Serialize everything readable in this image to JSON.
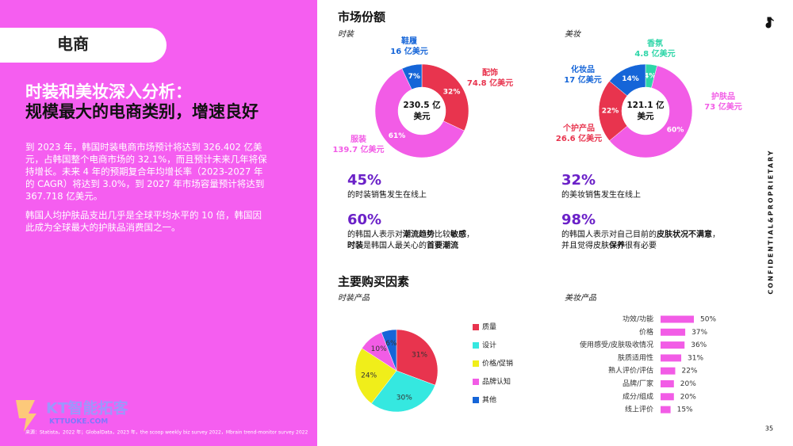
{
  "tag": "电商",
  "heading": [
    "时装和美妆深入分析：",
    "规模最大的电商类别，增速良好"
  ],
  "paragraphs": [
    [
      "到 2023 年，韩国时装电商市场预计将达到 326.402 亿美",
      "元，占韩国整个电商市场的 32.1%，而且预计未来几年将保",
      "持增长。未来 4 年的预期复合年均增长率（2023-2027 年",
      "的 CAGR）将达到 3.0%，到 2027 年市场容量预计将达到",
      "367.718 亿美元。"
    ],
    [
      "韩国人均护肤品支出几乎是全球平均水平的 10 倍，韩国因",
      "此成为全球最大的护肤品消费国之一。"
    ]
  ],
  "source": "来源：Statista，2022 年；GlobalData，2023 年，the scoop weekly biz survey 2022，Mbrain trend-monitor survey 2022",
  "logo": {
    "name": "KT智能拓客",
    "site": "KTTUOKE.COM"
  },
  "market_share_title": "市场份额",
  "purchase_factors_title": "主要购买因素",
  "side_text": "CONFIDENTIAL&PROPRIETARY",
  "page_number": "35",
  "stats": [
    {
      "figure": "45%",
      "lines": [
        [
          {
            "text": "的时装销售发生在线上",
            "bold": false
          }
        ]
      ]
    },
    {
      "figure": "60%",
      "lines": [
        [
          {
            "text": "的韩国人表示对",
            "bold": false
          },
          {
            "text": "潮流趋势",
            "bold": true
          },
          {
            "text": "比较",
            "bold": false
          },
          {
            "text": "敏感",
            "bold": true
          },
          {
            "text": "，",
            "bold": false
          }
        ],
        [
          {
            "text": "时装",
            "bold": true
          },
          {
            "text": "是韩国人最关心的",
            "bold": false
          },
          {
            "text": "首要潮流",
            "bold": true
          }
        ]
      ]
    },
    {
      "figure": "32%",
      "lines": [
        [
          {
            "text": "的美妆销售发生在线上",
            "bold": false
          }
        ]
      ]
    },
    {
      "figure": "98%",
      "lines": [
        [
          {
            "text": "的韩国人表示对自己目前的",
            "bold": false
          },
          {
            "text": "皮肤状况不满意",
            "bold": true
          },
          {
            "text": "，",
            "bold": false
          }
        ],
        [
          {
            "text": "并且觉得皮肤",
            "bold": false
          },
          {
            "text": "保养",
            "bold": true
          },
          {
            "text": "很有必要",
            "bold": false
          }
        ]
      ]
    }
  ],
  "chart_data": [
    {
      "type": "donut",
      "subtitle": "时装",
      "center_label": [
        "230.5 亿",
        "美元"
      ],
      "categories": [
        "配饰",
        "服装",
        "鞋履"
      ],
      "values": [
        32,
        61,
        7
      ],
      "value_labels": [
        "32%",
        "61%",
        "7%"
      ],
      "amount_labels": [
        "74.8 亿美元",
        "139.7 亿美元",
        "16 亿美元"
      ],
      "colors": [
        "#e8344e",
        "#f25ce6",
        "#1565d8"
      ]
    },
    {
      "type": "donut",
      "subtitle": "美妆",
      "center_label": [
        "121.1 亿",
        "美元"
      ],
      "categories": [
        "香氛",
        "护肤品",
        "个护产品",
        "化妆品"
      ],
      "values": [
        4,
        60,
        22,
        14
      ],
      "value_labels": [
        "4%",
        "60%",
        "22%",
        "14%"
      ],
      "amount_labels": [
        "4.8 亿美元",
        "73 亿美元",
        "26.6 亿美元",
        "17 亿美元"
      ],
      "colors": [
        "#2ed6a8",
        "#f25ce6",
        "#e8344e",
        "#1565d8"
      ]
    },
    {
      "type": "pie",
      "subtitle": "时装产品",
      "categories": [
        "质量",
        "设计",
        "价格/促销",
        "品牌认知",
        "其他"
      ],
      "values": [
        31,
        30,
        24,
        10,
        6
      ],
      "value_labels": [
        "31%",
        "30%",
        "24%",
        "10%",
        "6%"
      ],
      "colors": [
        "#e8344e",
        "#35e8e0",
        "#f0ee1a",
        "#f25ce6",
        "#1565d8"
      ]
    },
    {
      "type": "bar",
      "subtitle": "美妆产品",
      "categories": [
        "功效/功能",
        "价格",
        "使用感受/皮肤吸收情况",
        "肤质适用性",
        "熟人评价/评估",
        "品牌/厂家",
        "成分/组成",
        "线上评价"
      ],
      "values": [
        50,
        37,
        36,
        31,
        22,
        20,
        20,
        15
      ],
      "value_labels": [
        "50%",
        "37%",
        "36%",
        "31%",
        "22%",
        "20%",
        "20%",
        "15%"
      ],
      "color": "#f25ce6"
    }
  ]
}
